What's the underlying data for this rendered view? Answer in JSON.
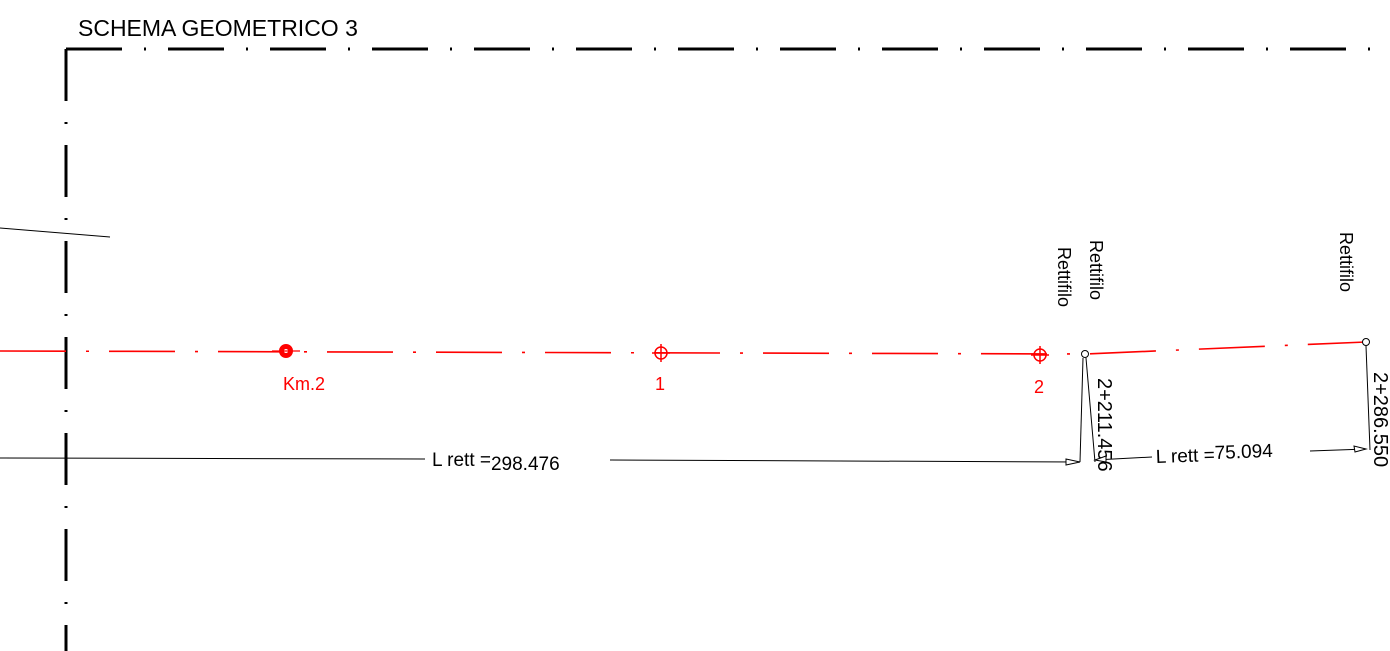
{
  "title": "SCHEMA GEOMETRICO 3",
  "markers": {
    "km": "Km.2",
    "p1": "1",
    "p2": "2"
  },
  "labels": {
    "rettifilo_a": "Rettifilo",
    "rettifilo_b": "Rettifilo",
    "rettifilo_c": "Rettifilo"
  },
  "stations": {
    "s1": "2+211.456",
    "s2": "2+286.550"
  },
  "dimensions": {
    "d1_prefix": "L rett =",
    "d1_value": "298.476",
    "d2_prefix": "L rett =",
    "d2_value": "75.094"
  },
  "colors": {
    "alignment": "#ff0000",
    "frame": "#000000"
  }
}
